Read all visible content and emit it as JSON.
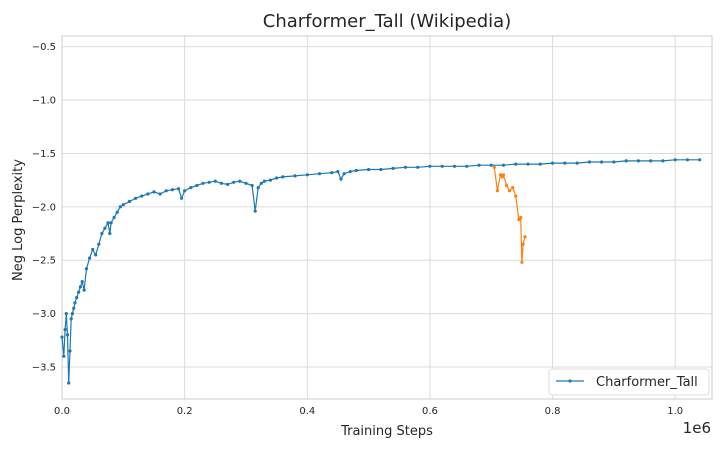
{
  "chart_data": {
    "type": "line",
    "title": "Charformer_Tall (Wikipedia)",
    "xlabel": "Training Steps",
    "ylabel": "Neg Log Perplexity",
    "x_offset_label": "1e6",
    "xlim": [
      0,
      1.06
    ],
    "ylim": [
      -3.8,
      -0.4
    ],
    "xticks": [
      0.0,
      0.2,
      0.4,
      0.6,
      0.8,
      1.0
    ],
    "xtick_labels": [
      "0.0",
      "0.2",
      "0.4",
      "0.6",
      "0.8",
      "1.0"
    ],
    "yticks": [
      -0.5,
      -1.0,
      -1.5,
      -2.0,
      -2.5,
      -3.0,
      -3.5
    ],
    "ytick_labels": [
      "−0.5",
      "−1.0",
      "−1.5",
      "−2.0",
      "−2.5",
      "−3.0",
      "−3.5"
    ],
    "grid": true,
    "legend_position": "bottom-right",
    "series": [
      {
        "name": "Charformer_Tall",
        "color": "#1f77b4",
        "in_legend": true,
        "x": [
          0.0,
          0.003,
          0.005,
          0.007,
          0.009,
          0.011,
          0.013,
          0.015,
          0.017,
          0.019,
          0.021,
          0.024,
          0.027,
          0.03,
          0.033,
          0.036,
          0.04,
          0.045,
          0.05,
          0.055,
          0.06,
          0.065,
          0.07,
          0.075,
          0.078,
          0.08,
          0.085,
          0.09,
          0.095,
          0.1,
          0.11,
          0.12,
          0.13,
          0.14,
          0.15,
          0.16,
          0.17,
          0.18,
          0.19,
          0.195,
          0.2,
          0.21,
          0.22,
          0.23,
          0.24,
          0.25,
          0.26,
          0.27,
          0.28,
          0.29,
          0.3,
          0.31,
          0.315,
          0.32,
          0.325,
          0.33,
          0.34,
          0.35,
          0.36,
          0.38,
          0.4,
          0.42,
          0.44,
          0.45,
          0.455,
          0.46,
          0.47,
          0.48,
          0.5,
          0.52,
          0.54,
          0.56,
          0.58,
          0.6,
          0.62,
          0.64,
          0.66,
          0.68,
          0.7,
          0.72,
          0.74,
          0.76,
          0.78,
          0.8,
          0.82,
          0.84,
          0.86,
          0.88,
          0.9,
          0.92,
          0.94,
          0.96,
          0.98,
          1.0,
          1.02,
          1.04
        ],
        "y": [
          -3.22,
          -3.4,
          -3.15,
          -3.0,
          -3.2,
          -3.65,
          -3.35,
          -3.05,
          -3.0,
          -2.95,
          -2.9,
          -2.85,
          -2.8,
          -2.75,
          -2.7,
          -2.78,
          -2.58,
          -2.48,
          -2.4,
          -2.45,
          -2.35,
          -2.25,
          -2.2,
          -2.15,
          -2.25,
          -2.15,
          -2.1,
          -2.05,
          -2.0,
          -1.98,
          -1.95,
          -1.92,
          -1.9,
          -1.88,
          -1.86,
          -1.88,
          -1.85,
          -1.84,
          -1.83,
          -1.92,
          -1.85,
          -1.82,
          -1.8,
          -1.78,
          -1.77,
          -1.76,
          -1.78,
          -1.79,
          -1.77,
          -1.76,
          -1.78,
          -1.8,
          -2.04,
          -1.82,
          -1.78,
          -1.76,
          -1.75,
          -1.73,
          -1.72,
          -1.71,
          -1.7,
          -1.69,
          -1.68,
          -1.67,
          -1.74,
          -1.69,
          -1.67,
          -1.66,
          -1.65,
          -1.65,
          -1.64,
          -1.63,
          -1.63,
          -1.62,
          -1.62,
          -1.62,
          -1.62,
          -1.61,
          -1.61,
          -1.61,
          -1.6,
          -1.6,
          -1.6,
          -1.59,
          -1.59,
          -1.59,
          -1.58,
          -1.58,
          -1.58,
          -1.57,
          -1.57,
          -1.57,
          -1.57,
          -1.56,
          -1.56,
          -1.56
        ]
      },
      {
        "color": "#ff7f0e",
        "in_legend": false,
        "x": [
          0.705,
          0.71,
          0.715,
          0.718,
          0.72,
          0.725,
          0.73,
          0.735,
          0.74,
          0.745,
          0.748,
          0.75,
          0.752,
          0.755
        ],
        "y": [
          -1.63,
          -1.85,
          -1.7,
          -1.72,
          -1.7,
          -1.8,
          -1.85,
          -1.82,
          -1.9,
          -2.12,
          -2.1,
          -2.52,
          -2.35,
          -2.28
        ]
      }
    ]
  }
}
